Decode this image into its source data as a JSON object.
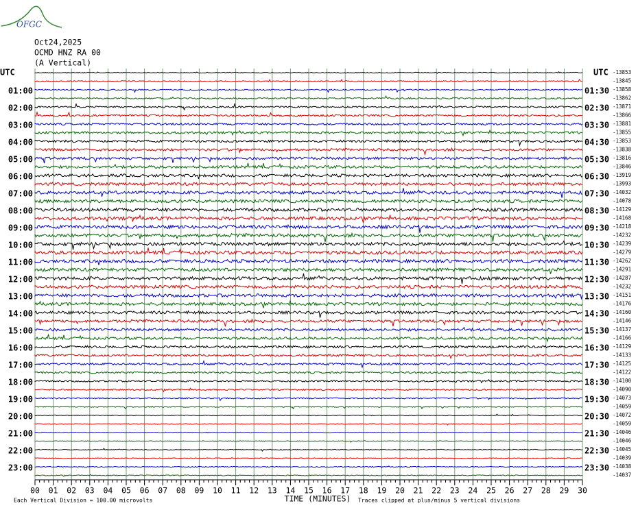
{
  "logo": "OFGC",
  "header": {
    "date": "Oct24,2025",
    "station": "OCMD HNZ RA 00",
    "component": "(A Vertical)"
  },
  "left_axis": {
    "title": "UTC",
    "labels": [
      "01:00",
      "02:00",
      "03:00",
      "04:00",
      "05:00",
      "06:00",
      "07:00",
      "08:00",
      "09:00",
      "10:00",
      "11:00",
      "12:00",
      "13:00",
      "14:00",
      "15:00",
      "16:00",
      "17:00",
      "18:00",
      "19:00",
      "20:00",
      "21:00",
      "22:00",
      "23:00"
    ]
  },
  "right_axis": {
    "title": "UTC",
    "labels": [
      "01:30",
      "02:30",
      "03:30",
      "04:30",
      "05:30",
      "06:30",
      "07:30",
      "08:30",
      "09:30",
      "10:30",
      "11:30",
      "12:30",
      "13:30",
      "14:30",
      "15:30",
      "16:30",
      "17:30",
      "18:30",
      "19:30",
      "20:30",
      "21:30",
      "22:30",
      "23:30"
    ],
    "offsets": [
      "-13853",
      "-13845",
      "-13858",
      "-13862",
      "-13871",
      "-13866",
      "-13881",
      "-13855",
      "-13853",
      "-13838",
      "-13816",
      "-13846",
      "-13919",
      "-13993",
      "-14032",
      "-14078",
      "-14129",
      "-14168",
      "-14218",
      "-14232",
      "-14239",
      "-14279",
      "-14262",
      "-14291",
      "-14287",
      "-14232",
      "-14151",
      "-14176",
      "-14160",
      "-14146",
      "-14137",
      "-14166",
      "-14129",
      "-14133",
      "-14125",
      "-14122",
      "-14100",
      "-14090",
      "-14073",
      "-14059",
      "-14072",
      "-14059",
      "-14046",
      "-14046",
      "-14045",
      "-14039",
      "-14038",
      "-14037"
    ]
  },
  "x_axis": {
    "title": "TIME (MINUTES)",
    "labels": [
      "00",
      "01",
      "02",
      "03",
      "04",
      "05",
      "06",
      "07",
      "08",
      "09",
      "10",
      "11",
      "12",
      "13",
      "14",
      "15",
      "16",
      "17",
      "18",
      "19",
      "20",
      "21",
      "22",
      "23",
      "24",
      "25",
      "26",
      "27",
      "28",
      "29",
      "30"
    ]
  },
  "footer": {
    "scale": "Each Vertical Division =  100.00 microvolts",
    "clip": "Traces clipped at plus/minus 5 vertical divisions"
  }
}
